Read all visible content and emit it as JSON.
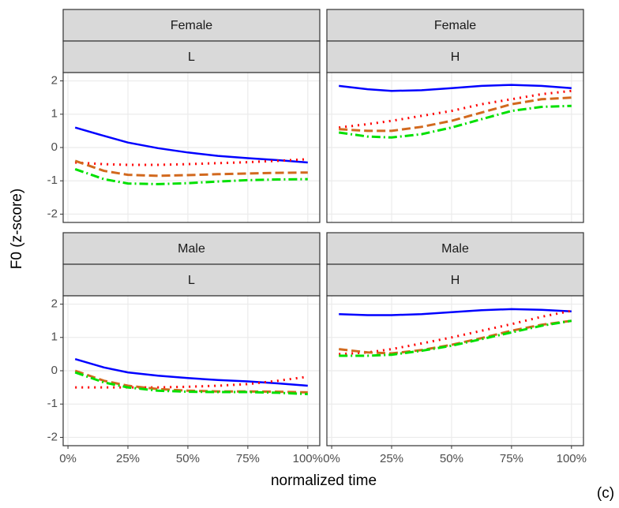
{
  "axes": {
    "xlabel": "normalized time",
    "ylabel": "F0 (z-score)"
  },
  "caption": "(c)",
  "chart_data": [
    {
      "type": "line",
      "strips": [
        "Female",
        "L"
      ],
      "x": [
        3,
        15,
        25,
        37.5,
        50,
        62.5,
        75,
        87.5,
        100
      ],
      "xlim": [
        -2,
        105
      ],
      "ylim": [
        -2.25,
        2.25
      ],
      "grid": true,
      "xticks": [
        {
          "value": 0,
          "label": "0%"
        },
        {
          "value": 25,
          "label": "25%"
        },
        {
          "value": 50,
          "label": "50%"
        },
        {
          "value": 75,
          "label": "75%"
        },
        {
          "value": 100,
          "label": "100%"
        }
      ],
      "yticks": [
        -2,
        -1,
        0,
        1,
        2
      ],
      "series": [
        {
          "color": "#0000ff",
          "style": "solid",
          "values": [
            0.6,
            0.35,
            0.15,
            -0.02,
            -0.15,
            -0.25,
            -0.32,
            -0.38,
            -0.45
          ]
        },
        {
          "color": "#ff0000",
          "style": "dotted",
          "values": [
            -0.45,
            -0.5,
            -0.52,
            -0.52,
            -0.5,
            -0.47,
            -0.44,
            -0.4,
            -0.35
          ]
        },
        {
          "color": "#d2691e",
          "style": "dashed",
          "values": [
            -0.4,
            -0.7,
            -0.82,
            -0.85,
            -0.83,
            -0.8,
            -0.78,
            -0.76,
            -0.75
          ]
        },
        {
          "color": "#00e000",
          "style": "dashdot",
          "values": [
            -0.65,
            -0.95,
            -1.08,
            -1.1,
            -1.07,
            -1.02,
            -0.98,
            -0.96,
            -0.95
          ]
        }
      ]
    },
    {
      "type": "line",
      "strips": [
        "Female",
        "H"
      ],
      "x": [
        3,
        15,
        25,
        37.5,
        50,
        62.5,
        75,
        87.5,
        100
      ],
      "xlim": [
        -2,
        105
      ],
      "ylim": [
        -2.25,
        2.25
      ],
      "grid": true,
      "xticks": [
        {
          "value": 0,
          "label": "0%"
        },
        {
          "value": 25,
          "label": "25%"
        },
        {
          "value": 50,
          "label": "50%"
        },
        {
          "value": 75,
          "label": "75%"
        },
        {
          "value": 100,
          "label": "100%"
        }
      ],
      "yticks": [
        -2,
        -1,
        0,
        1,
        2
      ],
      "series": [
        {
          "color": "#0000ff",
          "style": "solid",
          "values": [
            1.85,
            1.75,
            1.7,
            1.72,
            1.78,
            1.85,
            1.88,
            1.85,
            1.78
          ]
        },
        {
          "color": "#ff0000",
          "style": "dotted",
          "values": [
            0.6,
            0.7,
            0.8,
            0.95,
            1.1,
            1.3,
            1.45,
            1.6,
            1.7
          ]
        },
        {
          "color": "#d2691e",
          "style": "dashed",
          "values": [
            0.55,
            0.5,
            0.5,
            0.62,
            0.8,
            1.05,
            1.3,
            1.45,
            1.5
          ]
        },
        {
          "color": "#00e000",
          "style": "dashdot",
          "values": [
            0.45,
            0.33,
            0.3,
            0.4,
            0.6,
            0.85,
            1.1,
            1.22,
            1.25
          ]
        }
      ]
    },
    {
      "type": "line",
      "strips": [
        "Male",
        "L"
      ],
      "x": [
        3,
        15,
        25,
        37.5,
        50,
        62.5,
        75,
        87.5,
        100
      ],
      "xlim": [
        -2,
        105
      ],
      "ylim": [
        -2.25,
        2.25
      ],
      "grid": true,
      "xticks": [
        {
          "value": 0,
          "label": "0%"
        },
        {
          "value": 25,
          "label": "25%"
        },
        {
          "value": 50,
          "label": "50%"
        },
        {
          "value": 75,
          "label": "75%"
        },
        {
          "value": 100,
          "label": "100%"
        }
      ],
      "yticks": [
        -2,
        -1,
        0,
        1,
        2
      ],
      "series": [
        {
          "color": "#0000ff",
          "style": "solid",
          "values": [
            0.35,
            0.1,
            -0.05,
            -0.15,
            -0.22,
            -0.28,
            -0.32,
            -0.38,
            -0.45
          ]
        },
        {
          "color": "#ff0000",
          "style": "dotted",
          "values": [
            -0.5,
            -0.5,
            -0.5,
            -0.5,
            -0.48,
            -0.45,
            -0.4,
            -0.3,
            -0.18
          ]
        },
        {
          "color": "#d2691e",
          "style": "dashed",
          "values": [
            0.0,
            -0.3,
            -0.45,
            -0.55,
            -0.6,
            -0.62,
            -0.62,
            -0.63,
            -0.65
          ]
        },
        {
          "color": "#00e000",
          "style": "dashdot",
          "values": [
            -0.05,
            -0.35,
            -0.5,
            -0.6,
            -0.63,
            -0.64,
            -0.64,
            -0.66,
            -0.7
          ]
        }
      ]
    },
    {
      "type": "line",
      "strips": [
        "Male",
        "H"
      ],
      "x": [
        3,
        15,
        25,
        37.5,
        50,
        62.5,
        75,
        87.5,
        100
      ],
      "xlim": [
        -2,
        105
      ],
      "ylim": [
        -2.25,
        2.25
      ],
      "grid": true,
      "xticks": [
        {
          "value": 0,
          "label": "0%"
        },
        {
          "value": 25,
          "label": "25%"
        },
        {
          "value": 50,
          "label": "50%"
        },
        {
          "value": 75,
          "label": "75%"
        },
        {
          "value": 100,
          "label": "100%"
        }
      ],
      "yticks": [
        -2,
        -1,
        0,
        1,
        2
      ],
      "series": [
        {
          "color": "#0000ff",
          "style": "solid",
          "values": [
            1.7,
            1.67,
            1.67,
            1.7,
            1.76,
            1.82,
            1.85,
            1.83,
            1.78
          ]
        },
        {
          "color": "#ff0000",
          "style": "dotted",
          "values": [
            0.5,
            0.55,
            0.65,
            0.82,
            1.0,
            1.2,
            1.4,
            1.62,
            1.8
          ]
        },
        {
          "color": "#d2691e",
          "style": "dashed",
          "values": [
            0.65,
            0.55,
            0.52,
            0.62,
            0.78,
            0.98,
            1.2,
            1.38,
            1.5
          ]
        },
        {
          "color": "#00e000",
          "style": "dashdot",
          "values": [
            0.45,
            0.45,
            0.48,
            0.6,
            0.75,
            0.95,
            1.15,
            1.35,
            1.5
          ]
        }
      ]
    }
  ]
}
